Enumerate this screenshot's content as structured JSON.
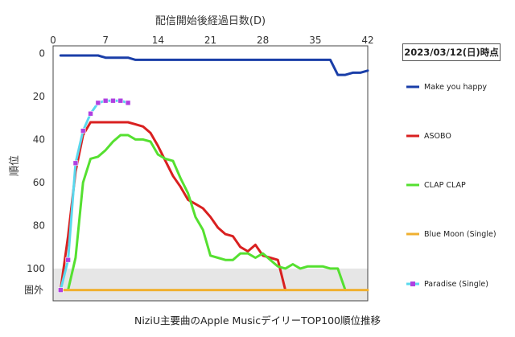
{
  "chart_data": {
    "type": "line",
    "title": "NiziU主要曲のApple MusicデイリーTOP100順位推移",
    "xlabel": "配信開始後経過日数(D)",
    "ylabel": "順位",
    "date_label": "2023/03/12(日)時点",
    "out_of_chart_label": "圏外",
    "xlim": [
      0,
      42
    ],
    "ylim": [
      0,
      110
    ],
    "x_ticks": [
      0,
      7,
      14,
      21,
      28,
      35,
      42
    ],
    "y_ticks": [
      0,
      20,
      40,
      60,
      80,
      100
    ],
    "y_inverted": true,
    "out_of_chart_rank": 110,
    "shaded_band": [
      100,
      115
    ],
    "grid": false,
    "legend_position": "right",
    "series": [
      {
        "name": "Make you happy",
        "color": "#1a3ea8",
        "marker": "none",
        "points": [
          [
            1,
            1
          ],
          [
            2,
            1
          ],
          [
            3,
            1
          ],
          [
            4,
            1
          ],
          [
            5,
            1
          ],
          [
            6,
            1
          ],
          [
            7,
            2
          ],
          [
            8,
            2
          ],
          [
            9,
            2
          ],
          [
            10,
            2
          ],
          [
            11,
            3
          ],
          [
            12,
            3
          ],
          [
            13,
            3
          ],
          [
            14,
            3
          ],
          [
            15,
            3
          ],
          [
            16,
            3
          ],
          [
            17,
            3
          ],
          [
            18,
            3
          ],
          [
            19,
            3
          ],
          [
            20,
            3
          ],
          [
            21,
            3
          ],
          [
            22,
            3
          ],
          [
            23,
            3
          ],
          [
            24,
            3
          ],
          [
            25,
            3
          ],
          [
            26,
            3
          ],
          [
            27,
            3
          ],
          [
            28,
            3
          ],
          [
            29,
            3
          ],
          [
            30,
            3
          ],
          [
            31,
            3
          ],
          [
            32,
            3
          ],
          [
            33,
            3
          ],
          [
            34,
            3
          ],
          [
            35,
            3
          ],
          [
            36,
            3
          ],
          [
            37,
            3
          ],
          [
            38,
            10
          ],
          [
            39,
            10
          ],
          [
            40,
            9
          ],
          [
            41,
            9
          ],
          [
            42,
            8
          ]
        ]
      },
      {
        "name": "ASOBO",
        "color": "#d92020",
        "marker": "none",
        "points": [
          [
            1,
            110
          ],
          [
            2,
            85
          ],
          [
            3,
            55
          ],
          [
            4,
            38
          ],
          [
            5,
            32
          ],
          [
            6,
            32
          ],
          [
            7,
            32
          ],
          [
            8,
            32
          ],
          [
            9,
            32
          ],
          [
            10,
            32
          ],
          [
            11,
            33
          ],
          [
            12,
            34
          ],
          [
            13,
            37
          ],
          [
            14,
            43
          ],
          [
            15,
            50
          ],
          [
            16,
            57
          ],
          [
            17,
            62
          ],
          [
            18,
            68
          ],
          [
            19,
            70
          ],
          [
            20,
            72
          ],
          [
            21,
            76
          ],
          [
            22,
            81
          ],
          [
            23,
            84
          ],
          [
            24,
            85
          ],
          [
            25,
            90
          ],
          [
            26,
            92
          ],
          [
            27,
            89
          ],
          [
            28,
            94
          ],
          [
            29,
            95
          ],
          [
            30,
            96
          ],
          [
            31,
            110
          ]
        ]
      },
      {
        "name": "CLAP CLAP",
        "color": "#55e030",
        "marker": "none",
        "points": [
          [
            2,
            110
          ],
          [
            3,
            95
          ],
          [
            4,
            60
          ],
          [
            5,
            49
          ],
          [
            6,
            48
          ],
          [
            7,
            45
          ],
          [
            8,
            41
          ],
          [
            9,
            38
          ],
          [
            10,
            38
          ],
          [
            11,
            40
          ],
          [
            12,
            40
          ],
          [
            13,
            41
          ],
          [
            14,
            47
          ],
          [
            15,
            49
          ],
          [
            16,
            50
          ],
          [
            17,
            58
          ],
          [
            18,
            65
          ],
          [
            19,
            76
          ],
          [
            20,
            82
          ],
          [
            21,
            94
          ],
          [
            22,
            95
          ],
          [
            23,
            96
          ],
          [
            24,
            96
          ],
          [
            25,
            93
          ],
          [
            26,
            93
          ],
          [
            27,
            95
          ],
          [
            28,
            93
          ],
          [
            29,
            96
          ],
          [
            30,
            99
          ],
          [
            31,
            100
          ],
          [
            32,
            98
          ],
          [
            33,
            100
          ],
          [
            34,
            99
          ],
          [
            35,
            99
          ],
          [
            36,
            99
          ],
          [
            37,
            100
          ],
          [
            38,
            100
          ],
          [
            39,
            110
          ]
        ]
      },
      {
        "name": "Blue Moon (Single)",
        "color": "#f0b030",
        "marker": "none",
        "points": [
          [
            1,
            110
          ],
          [
            42,
            110
          ]
        ]
      },
      {
        "name": "Paradise (Single)",
        "color": "#5ad8ee",
        "marker": "square",
        "marker_color": "#b040e0",
        "points": [
          [
            1,
            110
          ],
          [
            2,
            96
          ],
          [
            3,
            51
          ],
          [
            4,
            36
          ],
          [
            5,
            28
          ],
          [
            6,
            23
          ],
          [
            7,
            22
          ],
          [
            8,
            22
          ],
          [
            9,
            22
          ],
          [
            10,
            23
          ]
        ]
      }
    ]
  }
}
